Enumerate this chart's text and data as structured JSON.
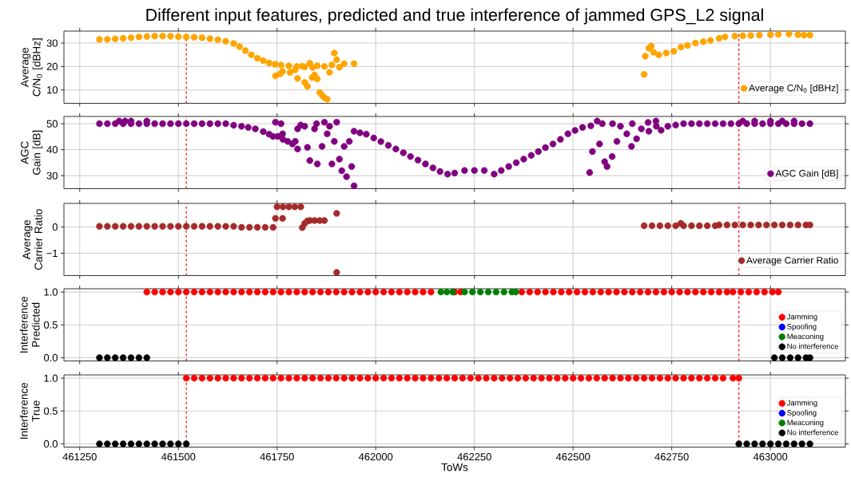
{
  "chart_data": [
    {
      "type": "scatter",
      "title": "Different input features, predicted and true interference of jammed GPS_L2 signal",
      "ylabel": "Average C/N$_{0}$ [dBHz]",
      "xlim": [
        461210,
        463190
      ],
      "ylim": [
        4.3,
        35.1
      ],
      "xticks": [
        461250,
        461500,
        461750,
        462000,
        462250,
        462500,
        462750,
        463000
      ],
      "yticks": [
        10,
        20,
        30
      ],
      "tick_labels": "y",
      "grid": true,
      "legend": "bottom right",
      "ref_lines": [
        {
          "axis": "x",
          "value": 461520,
          "color": "#ff0000",
          "line_style": "dashed"
        },
        {
          "axis": "x",
          "value": 462920,
          "color": "#ff0000",
          "line_style": "dashed"
        }
      ],
      "series": [
        {
          "name": "Average C/N$_{0}$ [dBHz]",
          "color": "#ffa500",
          "x": [
            461300,
            461320,
            461340,
            461360,
            461380,
            461400,
            461420,
            461440,
            461460,
            461480,
            461500,
            461520,
            461540,
            461560,
            461580,
            461600,
            461620,
            461640,
            461655,
            461670,
            461685,
            461700,
            461715,
            461730,
            461745,
            461760,
            461780,
            461800,
            461820,
            461840,
            461746,
            461758,
            461764,
            461783,
            461796,
            461802,
            461814,
            461820,
            461827,
            461833,
            461839,
            461845,
            461852,
            461858,
            461864,
            461870,
            461877,
            461883,
            461889,
            461895,
            461901,
            461908,
            461920,
            461945,
            461852,
            461870,
            462680,
            462683,
            462692,
            462698,
            462704,
            462717,
            462736,
            462755,
            462773,
            462790,
            462810,
            462830,
            462848,
            462870,
            462885,
            462910,
            462930,
            462950,
            462972,
            463000,
            463020,
            463047,
            463070,
            463085,
            463100
          ],
          "values": [
            31.5,
            31.6,
            31.8,
            32.0,
            32.3,
            32.6,
            32.8,
            33.0,
            33.0,
            32.9,
            32.7,
            32.6,
            32.5,
            32.3,
            31.9,
            31.4,
            30.8,
            29.8,
            28.5,
            26.8,
            25.0,
            23.5,
            22.5,
            21.5,
            21.0,
            20.6,
            20.3,
            20.0,
            19.8,
            19.6,
            16.0,
            16.9,
            17.9,
            17.5,
            18.6,
            14.9,
            20.1,
            13.2,
            11.5,
            21.4,
            15.3,
            16.4,
            14.7,
            8.9,
            7.8,
            6.7,
            6.1,
            17.5,
            20.7,
            25.7,
            22.9,
            19.7,
            21.2,
            21.2,
            20.3,
            20.0,
            16.6,
            24.4,
            27.8,
            28.7,
            26.1,
            25.0,
            25.7,
            26.5,
            28.3,
            29.0,
            30.0,
            30.6,
            31.1,
            32.0,
            32.6,
            33.0,
            33.1,
            33.2,
            33.4,
            33.6,
            33.7,
            33.9,
            33.6,
            33.4,
            33.4
          ]
        }
      ]
    },
    {
      "type": "scatter",
      "ylabel": "AGC Gain [dB]",
      "xlim": [
        461210,
        463190
      ],
      "ylim": [
        25,
        52.8
      ],
      "xticks": [
        461250,
        461500,
        461750,
        462000,
        462250,
        462500,
        462750,
        463000
      ],
      "yticks": [
        30,
        40,
        50
      ],
      "tick_labels": "y",
      "grid": true,
      "legend": "bottom right",
      "ref_lines": [
        {
          "axis": "x",
          "value": 461520,
          "color": "#ff0000",
          "line_style": "dashed"
        },
        {
          "axis": "x",
          "value": 462920,
          "color": "#ff0000",
          "line_style": "dashed"
        }
      ],
      "series": [
        {
          "name": "AGC Gain [dB]",
          "color": "#800080",
          "x": [
            461300,
            461320,
            461340,
            461360,
            461380,
            461400,
            461420,
            461440,
            461460,
            461480,
            461500,
            461520,
            461540,
            461560,
            461580,
            461600,
            461620,
            461350,
            461365,
            461380,
            461420,
            461640,
            461660,
            461677,
            461695,
            461715,
            461730,
            461740,
            461752,
            461765,
            461777,
            461789,
            461802,
            461746,
            461764,
            461796,
            461802,
            461820,
            461827,
            461833,
            461845,
            461852,
            461864,
            461870,
            461877,
            461883,
            461889,
            461895,
            461901,
            461908,
            461914,
            461920,
            461926,
            461933,
            461939,
            461945,
            461760,
            461810,
            461850,
            461945,
            461960,
            461976,
            461995,
            462013,
            462032,
            462051,
            462070,
            462088,
            462107,
            462126,
            462145,
            462163,
            462182,
            462200,
            462225,
            462250,
            462275,
            462300,
            462318,
            462337,
            462356,
            462375,
            462394,
            462412,
            462430,
            462449,
            462468,
            462487,
            462505,
            462524,
            462545,
            462574,
            462542,
            462549,
            462567,
            462580,
            462586,
            462599,
            462611,
            462636,
            462648,
            462661,
            462673,
            462692,
            462711,
            462723,
            462561,
            462600,
            462620,
            462650,
            462690,
            462740,
            462760,
            462780,
            462710,
            462800,
            462820,
            462840,
            462860,
            462880,
            462900,
            462920,
            462940,
            462960,
            462980,
            463000,
            463020,
            463040,
            463060,
            463080,
            463100,
            462930,
            462960,
            463000,
            463030,
            463060
          ],
          "values": [
            50,
            50,
            50,
            50,
            50,
            50,
            50,
            50,
            50,
            50,
            50,
            50,
            50,
            50,
            50,
            50,
            50,
            51,
            51,
            51,
            51,
            49.4,
            49.0,
            48.6,
            48.0,
            47.0,
            46.0,
            45.1,
            45.1,
            44.0,
            43.2,
            42.2,
            40.3,
            50.6,
            46.1,
            43.2,
            48.0,
            49.0,
            40.9,
            35.8,
            48.0,
            34.5,
            41.3,
            50.6,
            46.1,
            49.0,
            34.5,
            43.2,
            50.6,
            36.4,
            31.9,
            41.3,
            29.6,
            43.2,
            33.5,
            26.1,
            50,
            49.5,
            50,
            47.1,
            46.5,
            46.0,
            44.5,
            43.1,
            41.7,
            40.3,
            38.8,
            37.4,
            36.0,
            34.5,
            33.0,
            31.6,
            30.6,
            31.0,
            32.0,
            32.0,
            32.0,
            30.6,
            32.0,
            33.5,
            35.0,
            36.4,
            37.8,
            39.3,
            40.8,
            42.2,
            44.0,
            46.1,
            47.4,
            48.6,
            49.2,
            50.0,
            31.2,
            39.3,
            42.2,
            35.4,
            33.5,
            37.4,
            43.2,
            46.1,
            41.3,
            44.2,
            48.0,
            47.1,
            49.0,
            47.5,
            51.0,
            50,
            49,
            50,
            50.5,
            49,
            49.5,
            50,
            51,
            50,
            50,
            50,
            50,
            50,
            50,
            50,
            50,
            50,
            50,
            50,
            50,
            50,
            50,
            50,
            50,
            51,
            51,
            51,
            51,
            51
          ]
        }
      ]
    },
    {
      "type": "scatter",
      "ylabel": "Average Carrier Ratio",
      "xlim": [
        461210,
        463190
      ],
      "ylim": [
        -1.85,
        0.9
      ],
      "xticks": [
        461250,
        461500,
        461750,
        462000,
        462250,
        462500,
        462750,
        463000
      ],
      "yticks": [
        {
          "value": -1,
          "label": "−1"
        },
        0
      ],
      "tick_labels": "y",
      "grid": true,
      "legend": "bottom right",
      "ref_lines": [
        {
          "axis": "x",
          "value": 461520,
          "color": "#ff0000",
          "line_style": "dashed"
        },
        {
          "axis": "x",
          "value": 462920,
          "color": "#ff0000",
          "line_style": "dashed"
        }
      ],
      "series": [
        {
          "name": "Average Carrier Ratio",
          "color": "#a52a2a",
          "x": [
            461300,
            461320,
            461340,
            461360,
            461380,
            461400,
            461420,
            461440,
            461460,
            461480,
            461500,
            461520,
            461540,
            461560,
            461580,
            461600,
            461620,
            461640,
            461660,
            461680,
            461700,
            461720,
            461740,
            461746,
            461764,
            461750,
            461765,
            461780,
            461795,
            461810,
            461814,
            461820,
            461827,
            461833,
            461845,
            461858,
            461870,
            461901,
            461901,
            462680,
            462700,
            462720,
            462740,
            462760,
            462780,
            462800,
            462820,
            462840,
            462860,
            462773,
            462870,
            462890,
            462910,
            462930,
            462950,
            462970,
            462990,
            463010,
            463030,
            463050,
            463070,
            463090,
            463100
          ],
          "values": [
            0.03,
            0.03,
            0.03,
            0.03,
            0.03,
            0.03,
            0.03,
            0.03,
            0.03,
            0.03,
            0.03,
            0.03,
            0.03,
            0.03,
            0.03,
            0.03,
            0.03,
            0.03,
            -0.01,
            -0.01,
            -0.01,
            -0.01,
            -0.01,
            0.33,
            0.33,
            0.77,
            0.77,
            0.77,
            0.77,
            0.77,
            -0.02,
            0.14,
            0.23,
            0.25,
            0.25,
            0.25,
            0.25,
            0.52,
            -1.73,
            0.05,
            0.05,
            0.05,
            0.05,
            0.05,
            0.05,
            0.05,
            0.05,
            0.05,
            0.05,
            0.14,
            0.08,
            0.08,
            0.08,
            0.08,
            0.08,
            0.08,
            0.08,
            0.08,
            0.08,
            0.08,
            0.08,
            0.08,
            0.08
          ]
        }
      ]
    },
    {
      "type": "scatter",
      "ylabel": "Interference Predicted",
      "xlim": [
        461210,
        463190
      ],
      "ylim": [
        -0.05,
        1.05
      ],
      "xticks": [
        461250,
        461500,
        461750,
        462000,
        462250,
        462500,
        462750,
        463000
      ],
      "yticks": [
        {
          "value": 0,
          "label": "0.0"
        },
        {
          "value": 0.5,
          "label": "0.5"
        },
        {
          "value": 1,
          "label": "1.0"
        }
      ],
      "tick_labels": "y",
      "grid": true,
      "legend": "bottom right",
      "ref_lines": [
        {
          "axis": "x",
          "value": 461520,
          "color": "#ff0000",
          "line_style": "dashed"
        },
        {
          "axis": "x",
          "value": 462920,
          "color": "#ff0000",
          "line_style": "dashed"
        }
      ],
      "series": [
        {
          "name": "Jamming",
          "color": "#ff0000",
          "x": [
            461420,
            461440,
            461460,
            461480,
            461500,
            461520,
            461540,
            461560,
            461580,
            461600,
            461620,
            461640,
            461660,
            461680,
            461700,
            461720,
            461740,
            461760,
            461780,
            461800,
            461820,
            461840,
            461860,
            461880,
            461900,
            461920,
            461940,
            461960,
            461980,
            462000,
            462020,
            462040,
            462060,
            462080,
            462100,
            462120,
            462140,
            462200,
            462215,
            462370,
            462390,
            462410,
            462430,
            462450,
            462470,
            462490,
            462510,
            462530,
            462550,
            462570,
            462590,
            462610,
            462630,
            462650,
            462670,
            462690,
            462710,
            462730,
            462750,
            462770,
            462790,
            462810,
            462830,
            462850,
            462870,
            462890,
            462905,
            462925,
            462945,
            462965,
            462985,
            463005,
            463020
          ],
          "values": [
            1,
            1,
            1,
            1,
            1,
            1,
            1,
            1,
            1,
            1,
            1,
            1,
            1,
            1,
            1,
            1,
            1,
            1,
            1,
            1,
            1,
            1,
            1,
            1,
            1,
            1,
            1,
            1,
            1,
            1,
            1,
            1,
            1,
            1,
            1,
            1,
            1,
            1,
            1,
            1,
            1,
            1,
            1,
            1,
            1,
            1,
            1,
            1,
            1,
            1,
            1,
            1,
            1,
            1,
            1,
            1,
            1,
            1,
            1,
            1,
            1,
            1,
            1,
            1,
            1,
            1,
            1,
            1,
            1,
            1,
            1,
            1,
            1
          ]
        },
        {
          "name": "Spoofing",
          "color": "#0000ff"
        },
        {
          "name": "Meaconing",
          "color": "#008000",
          "x": [
            462165,
            462180,
            462195,
            462225,
            462245,
            462265,
            462285,
            462305,
            462325,
            462345,
            462355
          ],
          "values": [
            1,
            1,
            1,
            1,
            1,
            1,
            1,
            1,
            1,
            1,
            1
          ]
        },
        {
          "name": "No interference",
          "color": "#000000",
          "x": [
            461300,
            461320,
            461340,
            461360,
            461380,
            461400,
            461420,
            463010,
            463030,
            463050,
            463070,
            463090,
            463100
          ],
          "values": [
            0,
            0,
            0,
            0,
            0,
            0,
            0,
            0,
            0,
            0,
            0,
            0,
            0
          ]
        }
      ]
    },
    {
      "type": "scatter",
      "xlabel": "ToWs",
      "ylabel": "Interference True",
      "xlim": [
        461210,
        463190
      ],
      "ylim": [
        -0.05,
        1.05
      ],
      "xticks": [
        461250,
        461500,
        461750,
        462000,
        462250,
        462500,
        462750,
        463000
      ],
      "yticks": [
        {
          "value": 0,
          "label": "0.0"
        },
        {
          "value": 0.5,
          "label": "0.5"
        },
        {
          "value": 1,
          "label": "1.0"
        }
      ],
      "grid": true,
      "legend": "bottom right",
      "ref_lines": [
        {
          "axis": "x",
          "value": 461520,
          "color": "#ff0000",
          "line_style": "dashed"
        },
        {
          "axis": "x",
          "value": 462920,
          "color": "#ff0000",
          "line_style": "dashed"
        }
      ],
      "series": [
        {
          "name": "Jamming",
          "color": "#ff0000",
          "x": [
            461520,
            461540,
            461560,
            461580,
            461600,
            461620,
            461640,
            461660,
            461680,
            461700,
            461720,
            461740,
            461760,
            461780,
            461800,
            461820,
            461840,
            461860,
            461880,
            461900,
            461920,
            461940,
            461960,
            461980,
            462000,
            462020,
            462040,
            462060,
            462080,
            462100,
            462120,
            462140,
            462160,
            462180,
            462200,
            462220,
            462240,
            462260,
            462280,
            462300,
            462320,
            462340,
            462360,
            462380,
            462400,
            462420,
            462440,
            462460,
            462480,
            462500,
            462520,
            462540,
            462560,
            462580,
            462600,
            462620,
            462640,
            462660,
            462680,
            462700,
            462720,
            462740,
            462760,
            462780,
            462800,
            462820,
            462840,
            462860,
            462880,
            462905,
            462920
          ],
          "values": [
            1,
            1,
            1,
            1,
            1,
            1,
            1,
            1,
            1,
            1,
            1,
            1,
            1,
            1,
            1,
            1,
            1,
            1,
            1,
            1,
            1,
            1,
            1,
            1,
            1,
            1,
            1,
            1,
            1,
            1,
            1,
            1,
            1,
            1,
            1,
            1,
            1,
            1,
            1,
            1,
            1,
            1,
            1,
            1,
            1,
            1,
            1,
            1,
            1,
            1,
            1,
            1,
            1,
            1,
            1,
            1,
            1,
            1,
            1,
            1,
            1,
            1,
            1,
            1,
            1,
            1,
            1,
            1,
            1,
            1,
            1
          ]
        },
        {
          "name": "Spoofing",
          "color": "#0000ff"
        },
        {
          "name": "Meaconing",
          "color": "#008000"
        },
        {
          "name": "No interference",
          "color": "#000000",
          "x": [
            461300,
            461320,
            461340,
            461360,
            461380,
            461400,
            461420,
            461440,
            461460,
            461480,
            461500,
            461520,
            462920,
            462940,
            462960,
            462980,
            463000,
            463020,
            463040,
            463060,
            463080,
            463100
          ],
          "values": [
            0,
            0,
            0,
            0,
            0,
            0,
            0,
            0,
            0,
            0,
            0,
            0,
            0,
            0,
            0,
            0,
            0,
            0,
            0,
            0,
            0,
            0
          ]
        }
      ]
    }
  ]
}
